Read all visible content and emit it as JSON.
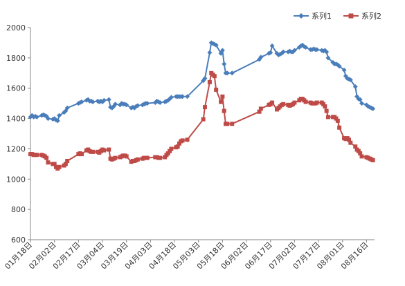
{
  "chart_data": {
    "type": "line",
    "title": "",
    "xlabel": "",
    "ylabel": "",
    "ylim": [
      600,
      2000
    ],
    "yticks": [
      600,
      800,
      1000,
      1200,
      1400,
      1600,
      1800,
      2000
    ],
    "xticks": [
      "01月18日",
      "02月02日",
      "02月17日",
      "03月04日",
      "03月19日",
      "04月03日",
      "04月18日",
      "05月03日",
      "05月18日",
      "06月02日",
      "06月17日",
      "07月02日",
      "07月17日",
      "08月01日",
      "08月16日"
    ],
    "xdomain": [
      "01月18日",
      "08月21日"
    ],
    "grid": false,
    "legend_position": "top-right",
    "series": [
      {
        "name": "系列1",
        "color": "#4a7ebb",
        "marker": "diamond",
        "points": [
          [
            "01月18日",
            1410
          ],
          [
            "01月19日",
            1420
          ],
          [
            "01月20日",
            1410
          ],
          [
            "01月21日",
            1415
          ],
          [
            "01月22日",
            1410
          ],
          [
            "01月25日",
            1420
          ],
          [
            "01月26日",
            1425
          ],
          [
            "01月27日",
            1420
          ],
          [
            "01月28日",
            1415
          ],
          [
            "01月29日",
            1400
          ],
          [
            "02月01日",
            1395
          ],
          [
            "02月02日",
            1400
          ],
          [
            "02月03日",
            1390
          ],
          [
            "02月04日",
            1385
          ],
          [
            "02月05日",
            1420
          ],
          [
            "02月08日",
            1440
          ],
          [
            "02月09日",
            1450
          ],
          [
            "02月10日",
            1470
          ],
          [
            "02月17日",
            1500
          ],
          [
            "02月18日",
            1505
          ],
          [
            "02月19日",
            1510
          ],
          [
            "02月22日",
            1520
          ],
          [
            "02月23日",
            1525
          ],
          [
            "02月24日",
            1515
          ],
          [
            "02月25日",
            1515
          ],
          [
            "02月26日",
            1510
          ],
          [
            "03月01日",
            1515
          ],
          [
            "03月02日",
            1510
          ],
          [
            "03月03日",
            1515
          ],
          [
            "03月04日",
            1510
          ],
          [
            "03月05日",
            1520
          ],
          [
            "03月08日",
            1525
          ],
          [
            "03月09日",
            1475
          ],
          [
            "03月10日",
            1470
          ],
          [
            "03月11日",
            1480
          ],
          [
            "03月12日",
            1495
          ],
          [
            "03月15日",
            1490
          ],
          [
            "03月16日",
            1500
          ],
          [
            "03月17日",
            1495
          ],
          [
            "03月18日",
            1495
          ],
          [
            "03月19日",
            1490
          ],
          [
            "03月22日",
            1470
          ],
          [
            "03月23日",
            1475
          ],
          [
            "03月24日",
            1470
          ],
          [
            "03月25日",
            1480
          ],
          [
            "03月26日",
            1485
          ],
          [
            "03月29日",
            1490
          ],
          [
            "03月30日",
            1495
          ],
          [
            "03月31日",
            1500
          ],
          [
            "04月01日",
            1500
          ],
          [
            "04月06日",
            1505
          ],
          [
            "04月07日",
            1515
          ],
          [
            "04月08日",
            1510
          ],
          [
            "04月09日",
            1505
          ],
          [
            "04月12日",
            1510
          ],
          [
            "04月13日",
            1515
          ],
          [
            "04月14日",
            1520
          ],
          [
            "04月15日",
            1530
          ],
          [
            "04月16日",
            1540
          ],
          [
            "04月19日",
            1545
          ],
          [
            "04月20日",
            1545
          ],
          [
            "04月21日",
            1545
          ],
          [
            "04月22日",
            1545
          ],
          [
            "04月23日",
            1545
          ],
          [
            "04月26日",
            1545
          ],
          [
            "05月06日",
            1650
          ],
          [
            "05月07日",
            1665
          ],
          [
            "05月10日",
            1835
          ],
          [
            "05月11日",
            1900
          ],
          [
            "05月12日",
            1895
          ],
          [
            "05月13日",
            1890
          ],
          [
            "05月14日",
            1885
          ],
          [
            "05月17日",
            1830
          ],
          [
            "05月18日",
            1850
          ],
          [
            "05月19日",
            1760
          ],
          [
            "05月20日",
            1700
          ],
          [
            "05月21日",
            1700
          ],
          [
            "05月24日",
            1700
          ],
          [
            "06月10日",
            1790
          ],
          [
            "06月11日",
            1805
          ],
          [
            "06月16日",
            1830
          ],
          [
            "06月17日",
            1835
          ],
          [
            "06月18日",
            1880
          ],
          [
            "06月21日",
            1830
          ],
          [
            "06月22日",
            1820
          ],
          [
            "06月23日",
            1825
          ],
          [
            "06月24日",
            1830
          ],
          [
            "06月25日",
            1840
          ],
          [
            "06月28日",
            1840
          ],
          [
            "06月29日",
            1845
          ],
          [
            "06月30日",
            1840
          ],
          [
            "07月01日",
            1840
          ],
          [
            "07月02日",
            1850
          ],
          [
            "07月05日",
            1870
          ],
          [
            "07月06日",
            1880
          ],
          [
            "07月07日",
            1885
          ],
          [
            "07月08日",
            1875
          ],
          [
            "07月09日",
            1870
          ],
          [
            "07月12日",
            1855
          ],
          [
            "07月13日",
            1855
          ],
          [
            "07月14日",
            1860
          ],
          [
            "07月15日",
            1855
          ],
          [
            "07月16日",
            1855
          ],
          [
            "07月19日",
            1850
          ],
          [
            "07月20日",
            1845
          ],
          [
            "07月21日",
            1850
          ],
          [
            "07月22日",
            1840
          ],
          [
            "07月23日",
            1800
          ],
          [
            "07月26日",
            1770
          ],
          [
            "07月27日",
            1760
          ],
          [
            "07月28日",
            1760
          ],
          [
            "07月29日",
            1755
          ],
          [
            "07月30日",
            1745
          ],
          [
            "08月02日",
            1720
          ],
          [
            "08月03日",
            1680
          ],
          [
            "08月04日",
            1665
          ],
          [
            "08月05日",
            1660
          ],
          [
            "08月06日",
            1655
          ],
          [
            "08月09日",
            1610
          ],
          [
            "08月10日",
            1545
          ],
          [
            "08月11日",
            1530
          ],
          [
            "08月12日",
            1525
          ],
          [
            "08月13日",
            1500
          ],
          [
            "08月16日",
            1490
          ],
          [
            "08月17日",
            1480
          ],
          [
            "08月18日",
            1475
          ],
          [
            "08月19日",
            1470
          ],
          [
            "08月20日",
            1465
          ]
        ]
      },
      {
        "name": "系列2",
        "color": "#be4b48",
        "marker": "square",
        "points": [
          [
            "01月18日",
            1165
          ],
          [
            "01月19日",
            1165
          ],
          [
            "01月20日",
            1160
          ],
          [
            "01月21日",
            1160
          ],
          [
            "01月22日",
            1160
          ],
          [
            "01月25日",
            1160
          ],
          [
            "01月26日",
            1155
          ],
          [
            "01月27日",
            1150
          ],
          [
            "01月28日",
            1140
          ],
          [
            "01月29日",
            1110
          ],
          [
            "02月01日",
            1100
          ],
          [
            "02月02日",
            1100
          ],
          [
            "02月03日",
            1080
          ],
          [
            "02月04日",
            1070
          ],
          [
            "02月05日",
            1080
          ],
          [
            "02月08日",
            1090
          ],
          [
            "02月09日",
            1100
          ],
          [
            "02月10日",
            1120
          ],
          [
            "02月17日",
            1165
          ],
          [
            "02月18日",
            1170
          ],
          [
            "02月19日",
            1165
          ],
          [
            "02月22日",
            1190
          ],
          [
            "02月23日",
            1195
          ],
          [
            "02月24日",
            1185
          ],
          [
            "02月25日",
            1180
          ],
          [
            "02月26日",
            1180
          ],
          [
            "03月01日",
            1180
          ],
          [
            "03月02日",
            1175
          ],
          [
            "03月03日",
            1185
          ],
          [
            "03月04日",
            1195
          ],
          [
            "03月05日",
            1190
          ],
          [
            "03月08日",
            1195
          ],
          [
            "03月09日",
            1135
          ],
          [
            "03月10日",
            1130
          ],
          [
            "03月11日",
            1135
          ],
          [
            "03月12日",
            1140
          ],
          [
            "03月15日",
            1145
          ],
          [
            "03月16日",
            1150
          ],
          [
            "03月17日",
            1155
          ],
          [
            "03月18日",
            1155
          ],
          [
            "03月19日",
            1150
          ],
          [
            "03月22日",
            1115
          ],
          [
            "03月23日",
            1120
          ],
          [
            "03月24日",
            1120
          ],
          [
            "03月25日",
            1125
          ],
          [
            "03月26日",
            1130
          ],
          [
            "03月29日",
            1135
          ],
          [
            "03月30日",
            1140
          ],
          [
            "03月31日",
            1140
          ],
          [
            "04月01日",
            1140
          ],
          [
            "04月06日",
            1145
          ],
          [
            "04月07日",
            1145
          ],
          [
            "04月08日",
            1140
          ],
          [
            "04月09日",
            1140
          ],
          [
            "04月12日",
            1145
          ],
          [
            "04月13日",
            1160
          ],
          [
            "04月14日",
            1170
          ],
          [
            "04月15日",
            1185
          ],
          [
            "04月16日",
            1200
          ],
          [
            "04月19日",
            1210
          ],
          [
            "04月20日",
            1215
          ],
          [
            "04月21日",
            1235
          ],
          [
            "04月22日",
            1250
          ],
          [
            "04月23日",
            1255
          ],
          [
            "04月26日",
            1260
          ],
          [
            "05月06日",
            1395
          ],
          [
            "05月07日",
            1475
          ],
          [
            "05月10日",
            1640
          ],
          [
            "05月11日",
            1700
          ],
          [
            "05月12日",
            1690
          ],
          [
            "05月13日",
            1680
          ],
          [
            "05月14日",
            1590
          ],
          [
            "05月17日",
            1510
          ],
          [
            "05月18日",
            1545
          ],
          [
            "05月19日",
            1450
          ],
          [
            "05月20日",
            1365
          ],
          [
            "05月21日",
            1365
          ],
          [
            "05月24日",
            1365
          ],
          [
            "06月10日",
            1445
          ],
          [
            "06月11日",
            1465
          ],
          [
            "06月16日",
            1490
          ],
          [
            "06月17日",
            1495
          ],
          [
            "06月18日",
            1505
          ],
          [
            "06月21日",
            1460
          ],
          [
            "06月22日",
            1470
          ],
          [
            "06月23日",
            1480
          ],
          [
            "06月24日",
            1490
          ],
          [
            "06月25日",
            1495
          ],
          [
            "06月28日",
            1490
          ],
          [
            "06月29日",
            1485
          ],
          [
            "06月30日",
            1490
          ],
          [
            "07月01日",
            1495
          ],
          [
            "07月02日",
            1505
          ],
          [
            "07月05日",
            1520
          ],
          [
            "07月06日",
            1530
          ],
          [
            "07月07日",
            1530
          ],
          [
            "07月08日",
            1520
          ],
          [
            "07月09日",
            1510
          ],
          [
            "07月12日",
            1505
          ],
          [
            "07月13日",
            1500
          ],
          [
            "07月14日",
            1500
          ],
          [
            "07月15日",
            1500
          ],
          [
            "07月16日",
            1505
          ],
          [
            "07月19日",
            1505
          ],
          [
            "07月20日",
            1495
          ],
          [
            "07月21日",
            1480
          ],
          [
            "07月22日",
            1450
          ],
          [
            "07月23日",
            1410
          ],
          [
            "07月26日",
            1410
          ],
          [
            "07月27日",
            1410
          ],
          [
            "07月28日",
            1400
          ],
          [
            "07月29日",
            1385
          ],
          [
            "07月30日",
            1340
          ],
          [
            "08月02日",
            1270
          ],
          [
            "08月03日",
            1265
          ],
          [
            "08月04日",
            1270
          ],
          [
            "08月05日",
            1260
          ],
          [
            "08月06日",
            1240
          ],
          [
            "08月09日",
            1215
          ],
          [
            "08月10日",
            1195
          ],
          [
            "08月11日",
            1185
          ],
          [
            "08月12日",
            1170
          ],
          [
            "08月13日",
            1150
          ],
          [
            "08月16日",
            1145
          ],
          [
            "08月17日",
            1140
          ],
          [
            "08月18日",
            1135
          ],
          [
            "08月19日",
            1130
          ],
          [
            "08月20日",
            1125
          ]
        ]
      }
    ]
  }
}
